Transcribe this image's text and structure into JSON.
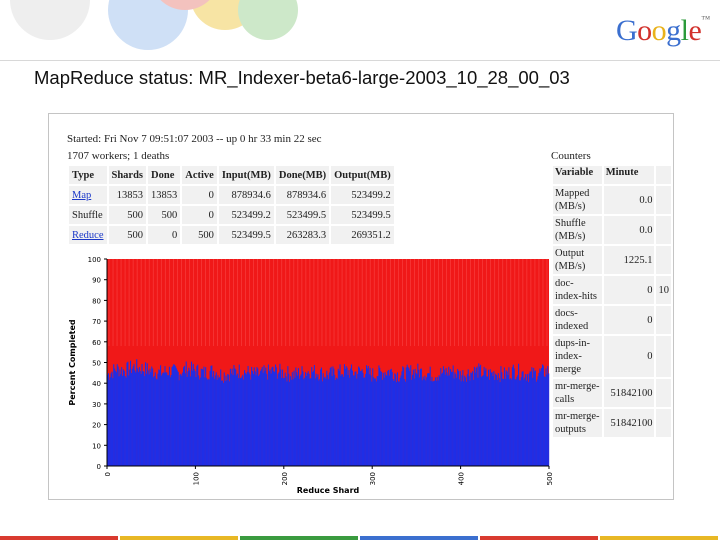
{
  "header": {
    "logo_letters": [
      {
        "ch": "G",
        "color": "#3b6fcf"
      },
      {
        "ch": "o",
        "color": "#d2322d"
      },
      {
        "ch": "o",
        "color": "#e9b21b"
      },
      {
        "ch": "g",
        "color": "#3b6fcf"
      },
      {
        "ch": "l",
        "color": "#2b9a3a"
      },
      {
        "ch": "e",
        "color": "#d2322d"
      }
    ],
    "logo_mark": "™",
    "title": "MapReduce status: MR_Indexer-beta6-large-2003_10_28_00_03"
  },
  "status": {
    "started": "Started: Fri Nov 7 09:51:07 2003 -- up 0 hr 33 min 22 sec",
    "workers": "1707 workers; 1 deaths"
  },
  "phase_table": {
    "headers": [
      "Type",
      "Shards",
      "Done",
      "Active",
      "Input(MB)",
      "Done(MB)",
      "Output(MB)"
    ],
    "rows": [
      {
        "type": "Map",
        "shards": "13853",
        "done": "13853",
        "active": "0",
        "input": "878934.6",
        "done_mb": "878934.6",
        "output": "523499.2"
      },
      {
        "type": "Shuffle",
        "shards": "500",
        "done": "500",
        "active": "0",
        "input": "523499.2",
        "done_mb": "523499.5",
        "output": "523499.5"
      },
      {
        "type": "Reduce",
        "shards": "500",
        "done": "0",
        "active": "500",
        "input": "523499.5",
        "done_mb": "263283.3",
        "output": "269351.2"
      }
    ]
  },
  "counters": {
    "title": "Counters",
    "headers": [
      "Variable",
      "Minute"
    ],
    "rows": [
      {
        "var": "Mapped (MB/s)",
        "val": "0.0"
      },
      {
        "var": "Shuffle (MB/s)",
        "val": "0.0"
      },
      {
        "var": "Output (MB/s)",
        "val": "1225.1"
      },
      {
        "var": "doc-index-hits",
        "val": "0"
      },
      {
        "var": "docs-indexed",
        "val": "0"
      },
      {
        "var": "dups-in-index-merge",
        "val": "0"
      },
      {
        "var": "mr-merge-calls",
        "val": "51842100"
      },
      {
        "var": "mr-merge-outputs",
        "val": "51842100"
      }
    ],
    "clipped_digits": "10"
  },
  "chart_data": {
    "type": "bar",
    "stacked": true,
    "xlabel": "Reduce Shard",
    "ylabel": "Percent Completed",
    "xlim": [
      0,
      500
    ],
    "ylim": [
      0,
      100
    ],
    "xticks": [
      0,
      100,
      200,
      300,
      400,
      500
    ],
    "yticks": [
      0,
      10,
      20,
      30,
      40,
      50,
      60,
      70,
      80,
      90,
      100
    ],
    "series": [
      {
        "color": "#1f2ee6",
        "profile": [
          44,
          47,
          46,
          48,
          47,
          46,
          45,
          46,
          45,
          47,
          46,
          45,
          46,
          44,
          45,
          46,
          45,
          44,
          45,
          46,
          45,
          44,
          45,
          46,
          45,
          44,
          45,
          46,
          45,
          46,
          44,
          45,
          46,
          44,
          45,
          46,
          45,
          44,
          45,
          46,
          44,
          45,
          46,
          44,
          45,
          44,
          46,
          45,
          44,
          45,
          46
        ]
      },
      {
        "color": "#f01818",
        "profile_total": 100
      }
    ],
    "background_grid": false
  },
  "footer_stripe_colors": [
    "#d93a2f",
    "#e8b825",
    "#3a9b3f",
    "#3b6fcf",
    "#d93a2f",
    "#e8b825"
  ]
}
